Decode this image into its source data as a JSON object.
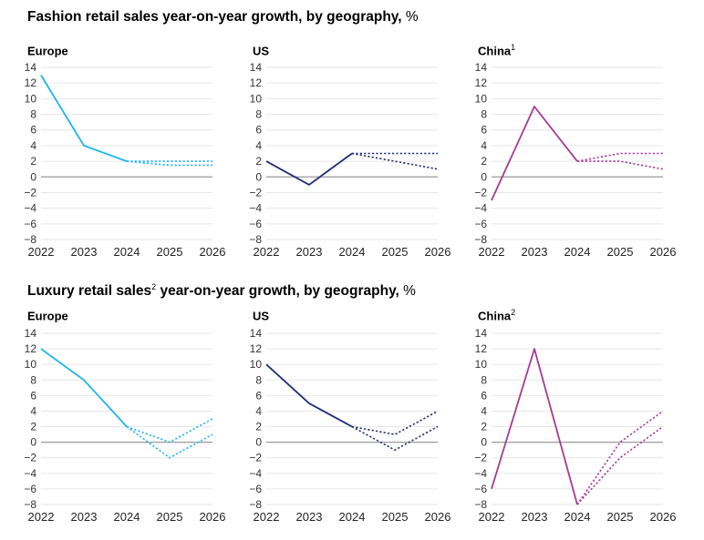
{
  "sections": [
    {
      "title": "Fashion retail sales year-on-year growth, by geography,",
      "title_sup": "",
      "title_after": "",
      "unit": "%"
    },
    {
      "title": "Luxury retail sales",
      "title_sup": "2",
      "title_after": " year-on-year growth, by geography,",
      "unit": "%"
    }
  ],
  "chart_data": [
    {
      "type": "line",
      "section": 0,
      "title": "Europe",
      "title_sup": "",
      "color": "#1eb4f0",
      "categories": [
        "2022",
        "2023",
        "2024",
        "2025",
        "2026"
      ],
      "ylim": [
        -8,
        14
      ],
      "yticks": [
        "−8",
        "−6",
        "−4",
        "−2",
        "0",
        "2",
        "4",
        "6",
        "8",
        "10",
        "12",
        "14"
      ],
      "series": [
        {
          "style": "solid",
          "values": [
            13,
            4,
            2,
            null,
            null
          ]
        },
        {
          "style": "dotted",
          "values": [
            null,
            null,
            2,
            2,
            2
          ]
        },
        {
          "style": "dotted",
          "values": [
            null,
            null,
            2,
            1.5,
            1.5
          ]
        }
      ]
    },
    {
      "type": "line",
      "section": 0,
      "title": "US",
      "title_sup": "",
      "color": "#1f2f78",
      "categories": [
        "2022",
        "2023",
        "2024",
        "2025",
        "2026"
      ],
      "ylim": [
        -8,
        14
      ],
      "yticks": [
        "−8",
        "−6",
        "−4",
        "−2",
        "0",
        "2",
        "4",
        "6",
        "8",
        "10",
        "12",
        "14"
      ],
      "series": [
        {
          "style": "solid",
          "values": [
            2,
            -1,
            3,
            null,
            null
          ]
        },
        {
          "style": "dotted",
          "values": [
            null,
            null,
            3,
            3,
            3
          ]
        },
        {
          "style": "dotted",
          "values": [
            null,
            null,
            3,
            2,
            1
          ]
        }
      ]
    },
    {
      "type": "line",
      "section": 0,
      "title": "China",
      "title_sup": "1",
      "color": "#a53a99",
      "categories": [
        "2022",
        "2023",
        "2024",
        "2025",
        "2026"
      ],
      "ylim": [
        -8,
        14
      ],
      "yticks": [
        "−8",
        "−6",
        "−4",
        "−2",
        "0",
        "2",
        "4",
        "6",
        "8",
        "10",
        "12",
        "14"
      ],
      "series": [
        {
          "style": "solid",
          "values": [
            -3,
            9,
            2,
            null,
            null
          ]
        },
        {
          "style": "dotted",
          "values": [
            null,
            null,
            2,
            3,
            3
          ]
        },
        {
          "style": "dotted",
          "values": [
            null,
            null,
            2,
            2,
            1
          ]
        }
      ]
    },
    {
      "type": "line",
      "section": 1,
      "title": "Europe",
      "title_sup": "",
      "color": "#1eb4f0",
      "categories": [
        "2022",
        "2023",
        "2024",
        "2025",
        "2026"
      ],
      "ylim": [
        -8,
        14
      ],
      "yticks": [
        "−8",
        "−6",
        "−4",
        "−2",
        "0",
        "2",
        "4",
        "6",
        "8",
        "10",
        "12",
        "14"
      ],
      "series": [
        {
          "style": "solid",
          "values": [
            12,
            8,
            2,
            null,
            null
          ]
        },
        {
          "style": "dotted",
          "values": [
            null,
            null,
            2,
            0,
            3
          ]
        },
        {
          "style": "dotted",
          "values": [
            null,
            null,
            2,
            -2,
            1
          ]
        }
      ]
    },
    {
      "type": "line",
      "section": 1,
      "title": "US",
      "title_sup": "",
      "color": "#1f2f78",
      "categories": [
        "2022",
        "2023",
        "2024",
        "2025",
        "2026"
      ],
      "ylim": [
        -8,
        14
      ],
      "yticks": [
        "−8",
        "−6",
        "−4",
        "−2",
        "0",
        "2",
        "4",
        "6",
        "8",
        "10",
        "12",
        "14"
      ],
      "series": [
        {
          "style": "solid",
          "values": [
            10,
            5,
            2,
            null,
            null
          ]
        },
        {
          "style": "dotted",
          "values": [
            null,
            null,
            2,
            1,
            4
          ]
        },
        {
          "style": "dotted",
          "values": [
            null,
            null,
            2,
            -1,
            2
          ]
        }
      ]
    },
    {
      "type": "line",
      "section": 1,
      "title": "China",
      "title_sup": "2",
      "color": "#a53a99",
      "categories": [
        "2022",
        "2023",
        "2024",
        "2025",
        "2026"
      ],
      "ylim": [
        -8,
        14
      ],
      "yticks": [
        "−8",
        "−6",
        "−4",
        "−2",
        "0",
        "2",
        "4",
        "6",
        "8",
        "10",
        "12",
        "14"
      ],
      "series": [
        {
          "style": "solid",
          "values": [
            -6,
            12,
            -8,
            null,
            null
          ]
        },
        {
          "style": "dotted",
          "values": [
            null,
            null,
            -8,
            0,
            4
          ]
        },
        {
          "style": "dotted",
          "values": [
            null,
            null,
            -8,
            -2,
            2
          ]
        }
      ]
    }
  ]
}
